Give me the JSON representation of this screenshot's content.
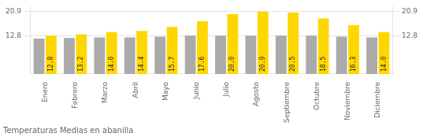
{
  "chart_data": {
    "type": "bar",
    "title": "Temperaturas Medias en abanilla",
    "categories": [
      "Enero",
      "Febrero",
      "Marzo",
      "Abril",
      "Mayo",
      "Junio",
      "Julio",
      "Agosto",
      "Septiembre",
      "Octubre",
      "Noviembre",
      "Diciembre"
    ],
    "series": [
      {
        "color": "#AAAAAA",
        "values": [
          11.8,
          12.0,
          12.2,
          12.2,
          12.5,
          12.8,
          12.8,
          12.8,
          12.8,
          12.8,
          12.5,
          12.2
        ]
      },
      {
        "color": "#FFD700",
        "values": [
          12.8,
          13.2,
          14.0,
          14.4,
          15.7,
          17.6,
          20.0,
          20.9,
          20.5,
          18.5,
          16.3,
          14.0
        ],
        "data_labels": true,
        "value_labels": [
          "12.8",
          "13.2",
          "14.0",
          "14.4",
          "15.7",
          "17.6",
          "20.0",
          "20.9",
          "20.5",
          "18.5",
          "16.3",
          "14.0"
        ]
      }
    ],
    "ylim": [
      0,
      22.5
    ],
    "yticks": [
      12.8,
      20.9
    ],
    "y2lim": [
      0,
      22.5
    ],
    "y2ticks": [
      12.8,
      20.9
    ],
    "grid": true
  }
}
